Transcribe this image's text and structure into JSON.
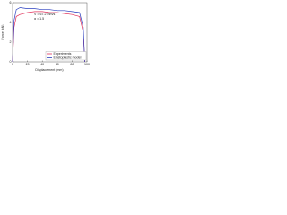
{
  "chart_data": {
    "type": "line",
    "x_label": "Displacement (mm)",
    "y_label": "Force (kN)",
    "annotations": [
      "V = 67.2 mm/s",
      "α = 1.5"
    ],
    "x": [
      0,
      2,
      5,
      10,
      20,
      30,
      40,
      50,
      60,
      70,
      80,
      90,
      95,
      97
    ],
    "series": [
      {
        "name": "Experiments",
        "color": "#e0305a",
        "values": [
          0,
          3.5,
          4.6,
          4.8,
          5.0,
          5.1,
          5.1,
          5.0,
          5.0,
          4.9,
          4.8,
          4.6,
          3.0,
          0
        ]
      },
      {
        "name": "Elastoplastic model",
        "color": "#2a3fbf",
        "values": [
          0,
          4.2,
          5.3,
          5.5,
          5.4,
          5.4,
          5.3,
          5.3,
          5.2,
          5.2,
          5.1,
          5.0,
          3.5,
          0
        ]
      }
    ],
    "xlim": [
      0,
      100
    ],
    "xticks": [
      0,
      20,
      40,
      60,
      80,
      100
    ],
    "ylim": [
      0,
      6
    ],
    "yticks": [
      0,
      2,
      4,
      6
    ],
    "legend": "lower right"
  }
}
